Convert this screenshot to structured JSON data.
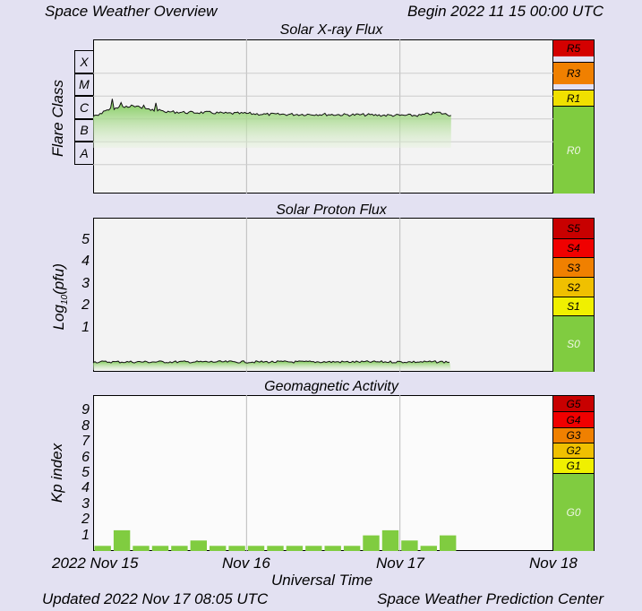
{
  "header": {
    "left": "Space Weather Overview",
    "right": "Begin 2022 11 15 00:00 UTC"
  },
  "footer": {
    "left": "Updated 2022 Nov 17 08:05 UTC",
    "right": "Space Weather Prediction Center"
  },
  "x_axis": {
    "label": "Universal Time",
    "ticks": [
      "2022 Nov 15",
      "Nov 16",
      "Nov 17",
      "Nov 18"
    ]
  },
  "xray": {
    "title": "Solar X-ray Flux",
    "ylabel": "Flare Class",
    "classes": [
      "X",
      "M",
      "C",
      "B",
      "A"
    ],
    "scale": [
      {
        "label": "R5",
        "color": "#d40000"
      },
      {
        "label": "R3",
        "color": "#f08000"
      },
      {
        "label": "R1",
        "color": "#f0e000"
      },
      {
        "label": "R0",
        "color": "#80cc40"
      }
    ]
  },
  "proton": {
    "title": "Solar Proton Flux",
    "ylabel": "Log10(pfu)",
    "yticks": [
      "5",
      "4",
      "3",
      "2",
      "1"
    ],
    "scale": [
      {
        "label": "S5",
        "color": "#c80000"
      },
      {
        "label": "S4",
        "color": "#f00000"
      },
      {
        "label": "S3",
        "color": "#f08000"
      },
      {
        "label": "S2",
        "color": "#f0c000"
      },
      {
        "label": "S1",
        "color": "#f0f000"
      },
      {
        "label": "S0",
        "color": "#80cc40"
      }
    ]
  },
  "geomag": {
    "title": "Geomagnetic Activity",
    "ylabel": "Kp index",
    "yticks": [
      "9",
      "8",
      "7",
      "6",
      "5",
      "4",
      "3",
      "2",
      "1"
    ],
    "scale": [
      {
        "label": "G5",
        "color": "#c80000"
      },
      {
        "label": "G4",
        "color": "#f00000"
      },
      {
        "label": "G3",
        "color": "#f08000"
      },
      {
        "label": "G2",
        "color": "#f0c000"
      },
      {
        "label": "G1",
        "color": "#f0f000"
      },
      {
        "label": "G0",
        "color": "#80cc40"
      }
    ]
  },
  "chart_data": [
    {
      "type": "area",
      "title": "Solar X-ray Flux",
      "ylabel": "Flare Class",
      "log_scale": true,
      "x_range": [
        "2022-11-15T00:00",
        "2022-11-18T00:00"
      ],
      "x": [
        "2022-11-15T00:00",
        "2022-11-15T03:00",
        "2022-11-15T06:00",
        "2022-11-15T09:00",
        "2022-11-15T12:00",
        "2022-11-15T15:00",
        "2022-11-15T18:00",
        "2022-11-15T21:00",
        "2022-11-16T00:00",
        "2022-11-16T03:00",
        "2022-11-16T06:00",
        "2022-11-16T09:00",
        "2022-11-16T12:00",
        "2022-11-16T15:00",
        "2022-11-16T18:00",
        "2022-11-16T21:00",
        "2022-11-17T00:00",
        "2022-11-17T03:00",
        "2022-11-17T06:00",
        "2022-11-17T08:00"
      ],
      "values": [
        4e-07,
        9e-07,
        1.2e-06,
        8e-07,
        6.5e-07,
        6e-07,
        6e-07,
        5.5e-07,
        5.5e-07,
        5e-07,
        5e-07,
        5e-07,
        5e-07,
        4.8e-07,
        4.8e-07,
        4.6e-07,
        4.5e-07,
        4.5e-07,
        6e-07,
        4.5e-07
      ]
    },
    {
      "type": "area",
      "title": "Solar Proton Flux",
      "ylabel": "Log10(pfu)",
      "ylim": [
        -1,
        6
      ],
      "x_range": [
        "2022-11-15T00:00",
        "2022-11-18T00:00"
      ],
      "x": [
        "2022-11-15T00:00",
        "2022-11-16T00:00",
        "2022-11-17T00:00",
        "2022-11-17T08:00"
      ],
      "values": [
        -0.55,
        -0.55,
        -0.55,
        -0.55
      ]
    },
    {
      "type": "bar",
      "title": "Geomagnetic Activity",
      "ylabel": "Kp index",
      "ylim": [
        0,
        10
      ],
      "x_range": [
        "2022-11-15T00:00",
        "2022-11-18T00:00"
      ],
      "categories": [
        "2022-11-15T00:00",
        "2022-11-15T03:00",
        "2022-11-15T06:00",
        "2022-11-15T09:00",
        "2022-11-15T12:00",
        "2022-11-15T15:00",
        "2022-11-15T18:00",
        "2022-11-15T21:00",
        "2022-11-16T00:00",
        "2022-11-16T03:00",
        "2022-11-16T06:00",
        "2022-11-16T09:00",
        "2022-11-16T12:00",
        "2022-11-16T15:00",
        "2022-11-16T18:00",
        "2022-11-16T21:00",
        "2022-11-17T00:00",
        "2022-11-17T03:00",
        "2022-11-17T06:00"
      ],
      "values": [
        0.33,
        1.33,
        0.33,
        0.33,
        0.33,
        0.67,
        0.33,
        0.33,
        0.33,
        0.33,
        0.33,
        0.33,
        0.33,
        0.33,
        1.0,
        1.33,
        0.67,
        0.33,
        1.0
      ]
    }
  ]
}
